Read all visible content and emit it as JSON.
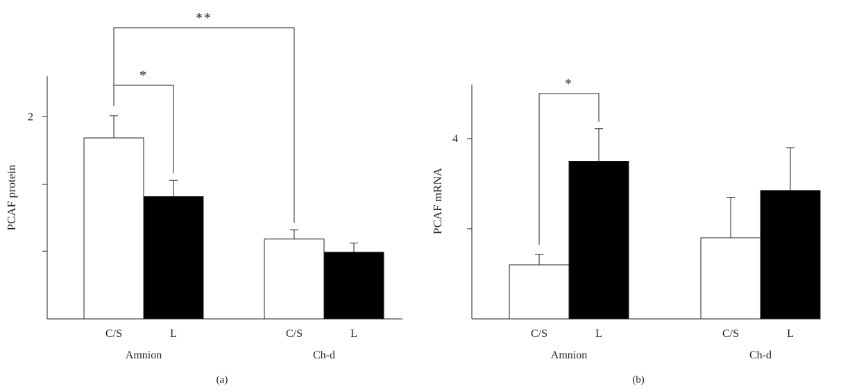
{
  "chart_data": [
    {
      "panel_label": "(a)",
      "type": "bar",
      "ylabel": "PCAF protein",
      "ylim": [
        0,
        2.4
      ],
      "yticks": [
        {
          "value": 0.67,
          "label": ""
        },
        {
          "value": 1.33,
          "label": ""
        },
        {
          "value": 2,
          "label": "2"
        }
      ],
      "groups": [
        "Amnion",
        "Ch-d"
      ],
      "categories": [
        "C/S",
        "L"
      ],
      "series": [
        {
          "category": "C/S",
          "fill": "#ffffff",
          "values": [
            1.79,
            0.79
          ],
          "errors": [
            0.22,
            0.09
          ]
        },
        {
          "category": "L",
          "fill": "#000000",
          "values": [
            1.21,
            0.66
          ],
          "errors": [
            0.16,
            0.09
          ]
        }
      ],
      "significance": [
        {
          "label": "*",
          "from": [
            0,
            0
          ],
          "to": [
            0,
            1
          ]
        },
        {
          "label": "**",
          "from": [
            0,
            0
          ],
          "to": [
            1,
            0
          ]
        }
      ]
    },
    {
      "panel_label": "(b)",
      "type": "bar",
      "ylabel": "PCAF mRNA",
      "ylim": [
        0,
        5.2
      ],
      "yticks": [
        {
          "value": 2,
          "label": ""
        },
        {
          "value": 4,
          "label": "4"
        }
      ],
      "groups": [
        "Amnion",
        "Ch-d"
      ],
      "categories": [
        "C/S",
        "L"
      ],
      "series": [
        {
          "category": "C/S",
          "fill": "#ffffff",
          "values": [
            1.2,
            1.8
          ],
          "errors": [
            0.23,
            0.9
          ]
        },
        {
          "category": "L",
          "fill": "#000000",
          "values": [
            3.5,
            2.85
          ],
          "errors": [
            0.72,
            0.95
          ]
        }
      ],
      "significance": [
        {
          "label": "*",
          "from": [
            0,
            0
          ],
          "to": [
            0,
            1
          ]
        }
      ]
    }
  ]
}
